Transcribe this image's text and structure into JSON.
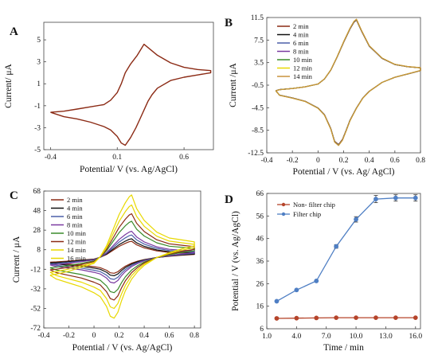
{
  "chart_data": [
    {
      "panel_label": "A",
      "type": "line",
      "title": "",
      "xlabel": "Potential/ V (vs. Ag/AgCl)",
      "ylabel": "Current/ μA",
      "x_ticks": [
        {
          "v": -0.4,
          "t": "-0.4"
        },
        {
          "v": 0.1,
          "t": "0.1"
        },
        {
          "v": 0.6,
          "t": "0.6"
        }
      ],
      "y_ticks": [
        {
          "v": -5,
          "t": "-5"
        },
        {
          "v": -3,
          "t": "-3"
        },
        {
          "v": -1,
          "t": "-1"
        },
        {
          "v": 1,
          "t": "1"
        },
        {
          "v": 3,
          "t": "3"
        },
        {
          "v": 5,
          "t": "5"
        }
      ],
      "xlim": [
        -0.45,
        0.82
      ],
      "ylim": [
        -5.0,
        6.6
      ],
      "grid": false,
      "legend": "none",
      "series": [
        {
          "color": "#8b2a14",
          "width": 1.4,
          "x": [
            -0.4,
            -0.3,
            -0.2,
            -0.1,
            0.0,
            0.05,
            0.1,
            0.13,
            0.16,
            0.2,
            0.25,
            0.3,
            0.4,
            0.5,
            0.6,
            0.7,
            0.8,
            0.8,
            0.7,
            0.6,
            0.5,
            0.4,
            0.36,
            0.33,
            0.3,
            0.27,
            0.24,
            0.2,
            0.16,
            0.13,
            0.1,
            0.05,
            0.0,
            -0.1,
            -0.2,
            -0.3,
            -0.4
          ],
          "y": [
            -1.6,
            -1.5,
            -1.3,
            -1.1,
            -0.9,
            -0.5,
            0.2,
            1.0,
            2.0,
            2.8,
            3.6,
            4.6,
            3.6,
            2.9,
            2.5,
            2.3,
            2.2,
            2.0,
            1.8,
            1.6,
            1.3,
            0.6,
            0.0,
            -0.6,
            -1.4,
            -2.2,
            -3.0,
            -3.9,
            -4.6,
            -4.4,
            -3.8,
            -3.2,
            -2.9,
            -2.5,
            -2.2,
            -2.0,
            -1.6
          ]
        }
      ]
    },
    {
      "panel_label": "B",
      "type": "line",
      "title": "",
      "xlabel": "Potential / V (vs. Ag/ AgCl)",
      "ylabel": "Current /μA",
      "x_ticks": [
        {
          "v": -0.4,
          "t": "-0.4"
        },
        {
          "v": -0.2,
          "t": "-0.2"
        },
        {
          "v": 0,
          "t": "0"
        },
        {
          "v": 0.2,
          "t": "0.2"
        },
        {
          "v": 0.4,
          "t": "0.4"
        },
        {
          "v": 0.6,
          "t": "0.6"
        },
        {
          "v": 0.8,
          "t": "0.8"
        }
      ],
      "y_ticks": [
        {
          "v": -12.5,
          "t": "-12.5"
        },
        {
          "v": -8.5,
          "t": "-8.5"
        },
        {
          "v": -4.5,
          "t": "-4.5"
        },
        {
          "v": -0.5,
          "t": "-0.5"
        },
        {
          "v": 3.5,
          "t": "3.5"
        },
        {
          "v": 7.5,
          "t": "7.5"
        },
        {
          "v": 11.5,
          "t": "11.5"
        }
      ],
      "xlim": [
        -0.4,
        0.8
      ],
      "ylim": [
        -12.5,
        11.5
      ],
      "grid": false,
      "legend": "top-left",
      "series": [
        {
          "name": "2 min",
          "color": "#8b2a14",
          "scale": 0.985
        },
        {
          "name": "4 min",
          "color": "#111111",
          "scale": 0.99
        },
        {
          "name": "6 min",
          "color": "#4a5fa8",
          "scale": 0.992
        },
        {
          "name": "8 min",
          "color": "#7a3aa0",
          "scale": 0.995
        },
        {
          "name": "10 min",
          "color": "#3a8a2a",
          "scale": 0.997
        },
        {
          "name": "12 min",
          "color": "#e8d800",
          "scale": 0.999
        },
        {
          "name": "14 min",
          "color": "#c8923c",
          "scale": 1.0
        }
      ],
      "base_curve": {
        "x": [
          -0.33,
          -0.3,
          -0.2,
          -0.1,
          0.0,
          0.05,
          0.1,
          0.15,
          0.2,
          0.25,
          0.28,
          0.3,
          0.34,
          0.4,
          0.5,
          0.6,
          0.7,
          0.8,
          0.8,
          0.7,
          0.6,
          0.5,
          0.4,
          0.35,
          0.3,
          0.25,
          0.22,
          0.19,
          0.16,
          0.13,
          0.1,
          0.05,
          0.0,
          -0.1,
          -0.2,
          -0.3,
          -0.33
        ],
        "y": [
          -1.5,
          -1.3,
          -1.1,
          -0.8,
          -0.3,
          0.6,
          2.2,
          4.6,
          7.2,
          9.6,
          10.8,
          11.2,
          9.2,
          6.5,
          4.3,
          3.2,
          2.8,
          2.6,
          2.1,
          1.5,
          0.9,
          0.0,
          -1.6,
          -2.8,
          -4.6,
          -6.8,
          -8.6,
          -10.3,
          -11.2,
          -10.6,
          -8.3,
          -5.8,
          -4.6,
          -3.4,
          -2.8,
          -2.3,
          -1.5
        ]
      }
    },
    {
      "panel_label": "C",
      "type": "line",
      "title": "",
      "xlabel": "Potential / V (vs. Ag/AgCl)",
      "ylabel": "Current / μA",
      "x_ticks": [
        {
          "v": -0.4,
          "t": "-0.4"
        },
        {
          "v": -0.2,
          "t": "-0.2"
        },
        {
          "v": 0,
          "t": "0"
        },
        {
          "v": 0.2,
          "t": "0.2"
        },
        {
          "v": 0.4,
          "t": "0.4"
        },
        {
          "v": 0.6,
          "t": "0.6"
        },
        {
          "v": 0.8,
          "t": "0.8"
        }
      ],
      "y_ticks": [
        {
          "v": -72,
          "t": "-72"
        },
        {
          "v": -52,
          "t": "-52"
        },
        {
          "v": -32,
          "t": "-32"
        },
        {
          "v": -12,
          "t": "-12"
        },
        {
          "v": 8,
          "t": "8"
        },
        {
          "v": 28,
          "t": "28"
        },
        {
          "v": 48,
          "t": "48"
        },
        {
          "v": 68,
          "t": "68"
        }
      ],
      "xlim": [
        -0.4,
        0.85
      ],
      "ylim": [
        -72,
        68
      ],
      "grid": false,
      "legend": "top-left",
      "series": [
        {
          "name": "2 min",
          "color": "#8b2a14",
          "scale": 0.26
        },
        {
          "name": "4 min",
          "color": "#111111",
          "scale": 0.3
        },
        {
          "name": "6 min",
          "color": "#4a5fa8",
          "scale": 0.36
        },
        {
          "name": "8 min",
          "color": "#7a3aa0",
          "scale": 0.42
        },
        {
          "name": "10 min",
          "color": "#3a8a2a",
          "scale": 0.58
        },
        {
          "name": "12 min",
          "color": "#8b2a14",
          "scale": 0.7
        },
        {
          "name": "14 min",
          "color": "#e8d800",
          "scale": 0.84
        },
        {
          "name": "16 min",
          "color": "#e8d800",
          "scale": 1.0
        }
      ],
      "base_curve": {
        "x": [
          -0.35,
          -0.3,
          -0.2,
          -0.1,
          0.0,
          0.05,
          0.1,
          0.15,
          0.2,
          0.25,
          0.28,
          0.3,
          0.34,
          0.4,
          0.5,
          0.6,
          0.7,
          0.8,
          0.8,
          0.7,
          0.6,
          0.5,
          0.4,
          0.35,
          0.3,
          0.25,
          0.22,
          0.19,
          0.16,
          0.13,
          0.1,
          0.05,
          0.0,
          -0.1,
          -0.2,
          -0.3,
          -0.35
        ],
        "y": [
          -18,
          -17,
          -14,
          -10,
          -6,
          1,
          12,
          28,
          44,
          56,
          62,
          64,
          50,
          38,
          26,
          20,
          18,
          16,
          12,
          9,
          5,
          0,
          -8,
          -14,
          -22,
          -34,
          -44,
          -56,
          -62,
          -60,
          -50,
          -40,
          -36,
          -30,
          -26,
          -22,
          -18
        ]
      }
    },
    {
      "panel_label": "D",
      "type": "line",
      "title": "",
      "xlabel": "Time / min",
      "ylabel": "Potential / V (vs. Ag/AgCl)",
      "x_ticks": [
        {
          "v": 1,
          "t": "1.0"
        },
        {
          "v": 4,
          "t": "4.0"
        },
        {
          "v": 7,
          "t": "7.0"
        },
        {
          "v": 10,
          "t": "10.0"
        },
        {
          "v": 13,
          "t": "13.0"
        },
        {
          "v": 16,
          "t": "16.0"
        }
      ],
      "y_ticks": [
        {
          "v": 6,
          "t": "6"
        },
        {
          "v": 16,
          "t": "16"
        },
        {
          "v": 26,
          "t": "26"
        },
        {
          "v": 36,
          "t": "36"
        },
        {
          "v": 46,
          "t": "46"
        },
        {
          "v": 56,
          "t": "56"
        },
        {
          "v": 66,
          "t": "66"
        }
      ],
      "xlim": [
        1,
        16.5
      ],
      "ylim": [
        6,
        66
      ],
      "grid": false,
      "legend": "top-left",
      "series": [
        {
          "name": "Non- filter chip",
          "color": "#b5442a",
          "x": [
            2,
            4,
            6,
            8,
            10,
            12,
            14,
            16
          ],
          "y": [
            10.6,
            10.7,
            10.8,
            10.9,
            10.9,
            10.9,
            10.9,
            10.9
          ],
          "err": [
            0,
            0,
            0,
            0,
            0,
            0,
            0,
            0
          ]
        },
        {
          "name": "Filter chip",
          "color": "#4f7fc4",
          "x": [
            2,
            4,
            6,
            8,
            10,
            12,
            14,
            16
          ],
          "y": [
            18.2,
            23.2,
            27.2,
            42.5,
            54.5,
            63.5,
            64.0,
            64.0
          ],
          "err": [
            0,
            0,
            0,
            0.8,
            1.2,
            1.6,
            1.4,
            1.4
          ]
        }
      ]
    }
  ]
}
